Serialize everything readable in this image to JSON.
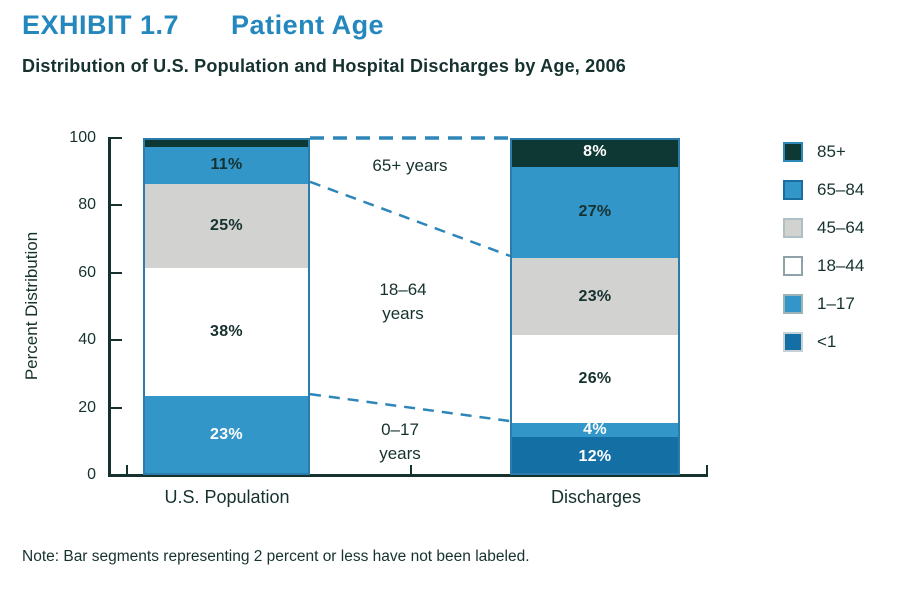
{
  "header": {
    "exhibit": "EXHIBIT 1.7",
    "title": "Patient Age",
    "subtitle": "Distribution of U.S. Population and Hospital Discharges by Age, 2006"
  },
  "note": "Note: Bar segments representing 2 percent or less have not been labeled.",
  "colors": {
    "title_blue": "#2487bd",
    "dark_text": "#16322f",
    "dashed_line": "#2f86b8",
    "bar_border": "#2b7cab",
    "segment_separator": "#14333a",
    "fill_85plus": "#0d3834",
    "fill_medium_blue": "#3396c9",
    "fill_gray": "#d2d2d0",
    "fill_white": "#ffffff",
    "fill_under1": "#1470a4"
  },
  "chart_data": {
    "type": "bar",
    "stacked": true,
    "title": "Distribution of U.S. Population and Hospital Discharges by Age, 2006",
    "ylabel": "Percent Distribution",
    "xlabel": "",
    "ylim": [
      0,
      100
    ],
    "y_ticks": [
      0,
      20,
      40,
      60,
      80,
      100
    ],
    "grid": false,
    "legend_position": "right",
    "categories": [
      "U.S. Population",
      "Discharges"
    ],
    "age_groups_bottom_to_top": [
      "<1",
      "1–17",
      "18–44",
      "45–64",
      "65–84",
      "85+"
    ],
    "bars": [
      {
        "category": "U.S. Population",
        "segments": [
          {
            "group": "<1",
            "value": 1,
            "label": "",
            "fill": "#1470a4",
            "label_color": "#ffffff"
          },
          {
            "group": "1–17",
            "value": 23,
            "label": "23%",
            "fill": "#3396c9",
            "label_color": "#ffffff"
          },
          {
            "group": "18–44",
            "value": 38,
            "label": "38%",
            "fill": "#ffffff",
            "label_color": "#16322f"
          },
          {
            "group": "45–64",
            "value": 25,
            "label": "25%",
            "fill": "#d2d2d0",
            "label_color": "#16322f"
          },
          {
            "group": "65–84",
            "value": 11,
            "label": "11%",
            "fill": "#3396c9",
            "label_color": "#16322f"
          },
          {
            "group": "85+",
            "value": 2,
            "label": "",
            "fill": "#0d3834",
            "label_color": "#ffffff"
          }
        ]
      },
      {
        "category": "Discharges",
        "segments": [
          {
            "group": "<1",
            "value": 12,
            "label": "12%",
            "fill": "#1470a4",
            "label_color": "#ffffff"
          },
          {
            "group": "1–17",
            "value": 4,
            "label": "4%",
            "fill": "#3396c9",
            "label_color": "#ffffff"
          },
          {
            "group": "18–44",
            "value": 26,
            "label": "26%",
            "fill": "#ffffff",
            "label_color": "#16322f"
          },
          {
            "group": "45–64",
            "value": 23,
            "label": "23%",
            "fill": "#d2d2d0",
            "label_color": "#16322f"
          },
          {
            "group": "65–84",
            "value": 27,
            "label": "27%",
            "fill": "#3396c9",
            "label_color": "#16322f"
          },
          {
            "group": "85+",
            "value": 8,
            "label": "8%",
            "fill": "#0d3834",
            "label_color": "#ffffff"
          }
        ]
      }
    ],
    "connector_regions": [
      {
        "label": "65+ years",
        "upper_groups": [
          "85+",
          "65–84"
        ]
      },
      {
        "label": "18–64\nyears",
        "upper_groups": null
      },
      {
        "label": "0–17\nyears",
        "lower_groups": [
          "<1",
          "1–17"
        ]
      }
    ],
    "legend": {
      "items": [
        {
          "label": "85+",
          "fill": "#0d3834",
          "border": "#2f86b8"
        },
        {
          "label": "65–84",
          "fill": "#3396c9",
          "border": "#1a6da1"
        },
        {
          "label": "45–64",
          "fill": "#d2d2d0",
          "border": "#aebfc6"
        },
        {
          "label": "18–44",
          "fill": "#ffffff",
          "border": "#8fa2a7"
        },
        {
          "label": "1–17",
          "fill": "#3396c9",
          "border": "#9fb2b8"
        },
        {
          "label": "<1",
          "fill": "#1470a4",
          "border": "#c4d2d8"
        }
      ]
    }
  }
}
